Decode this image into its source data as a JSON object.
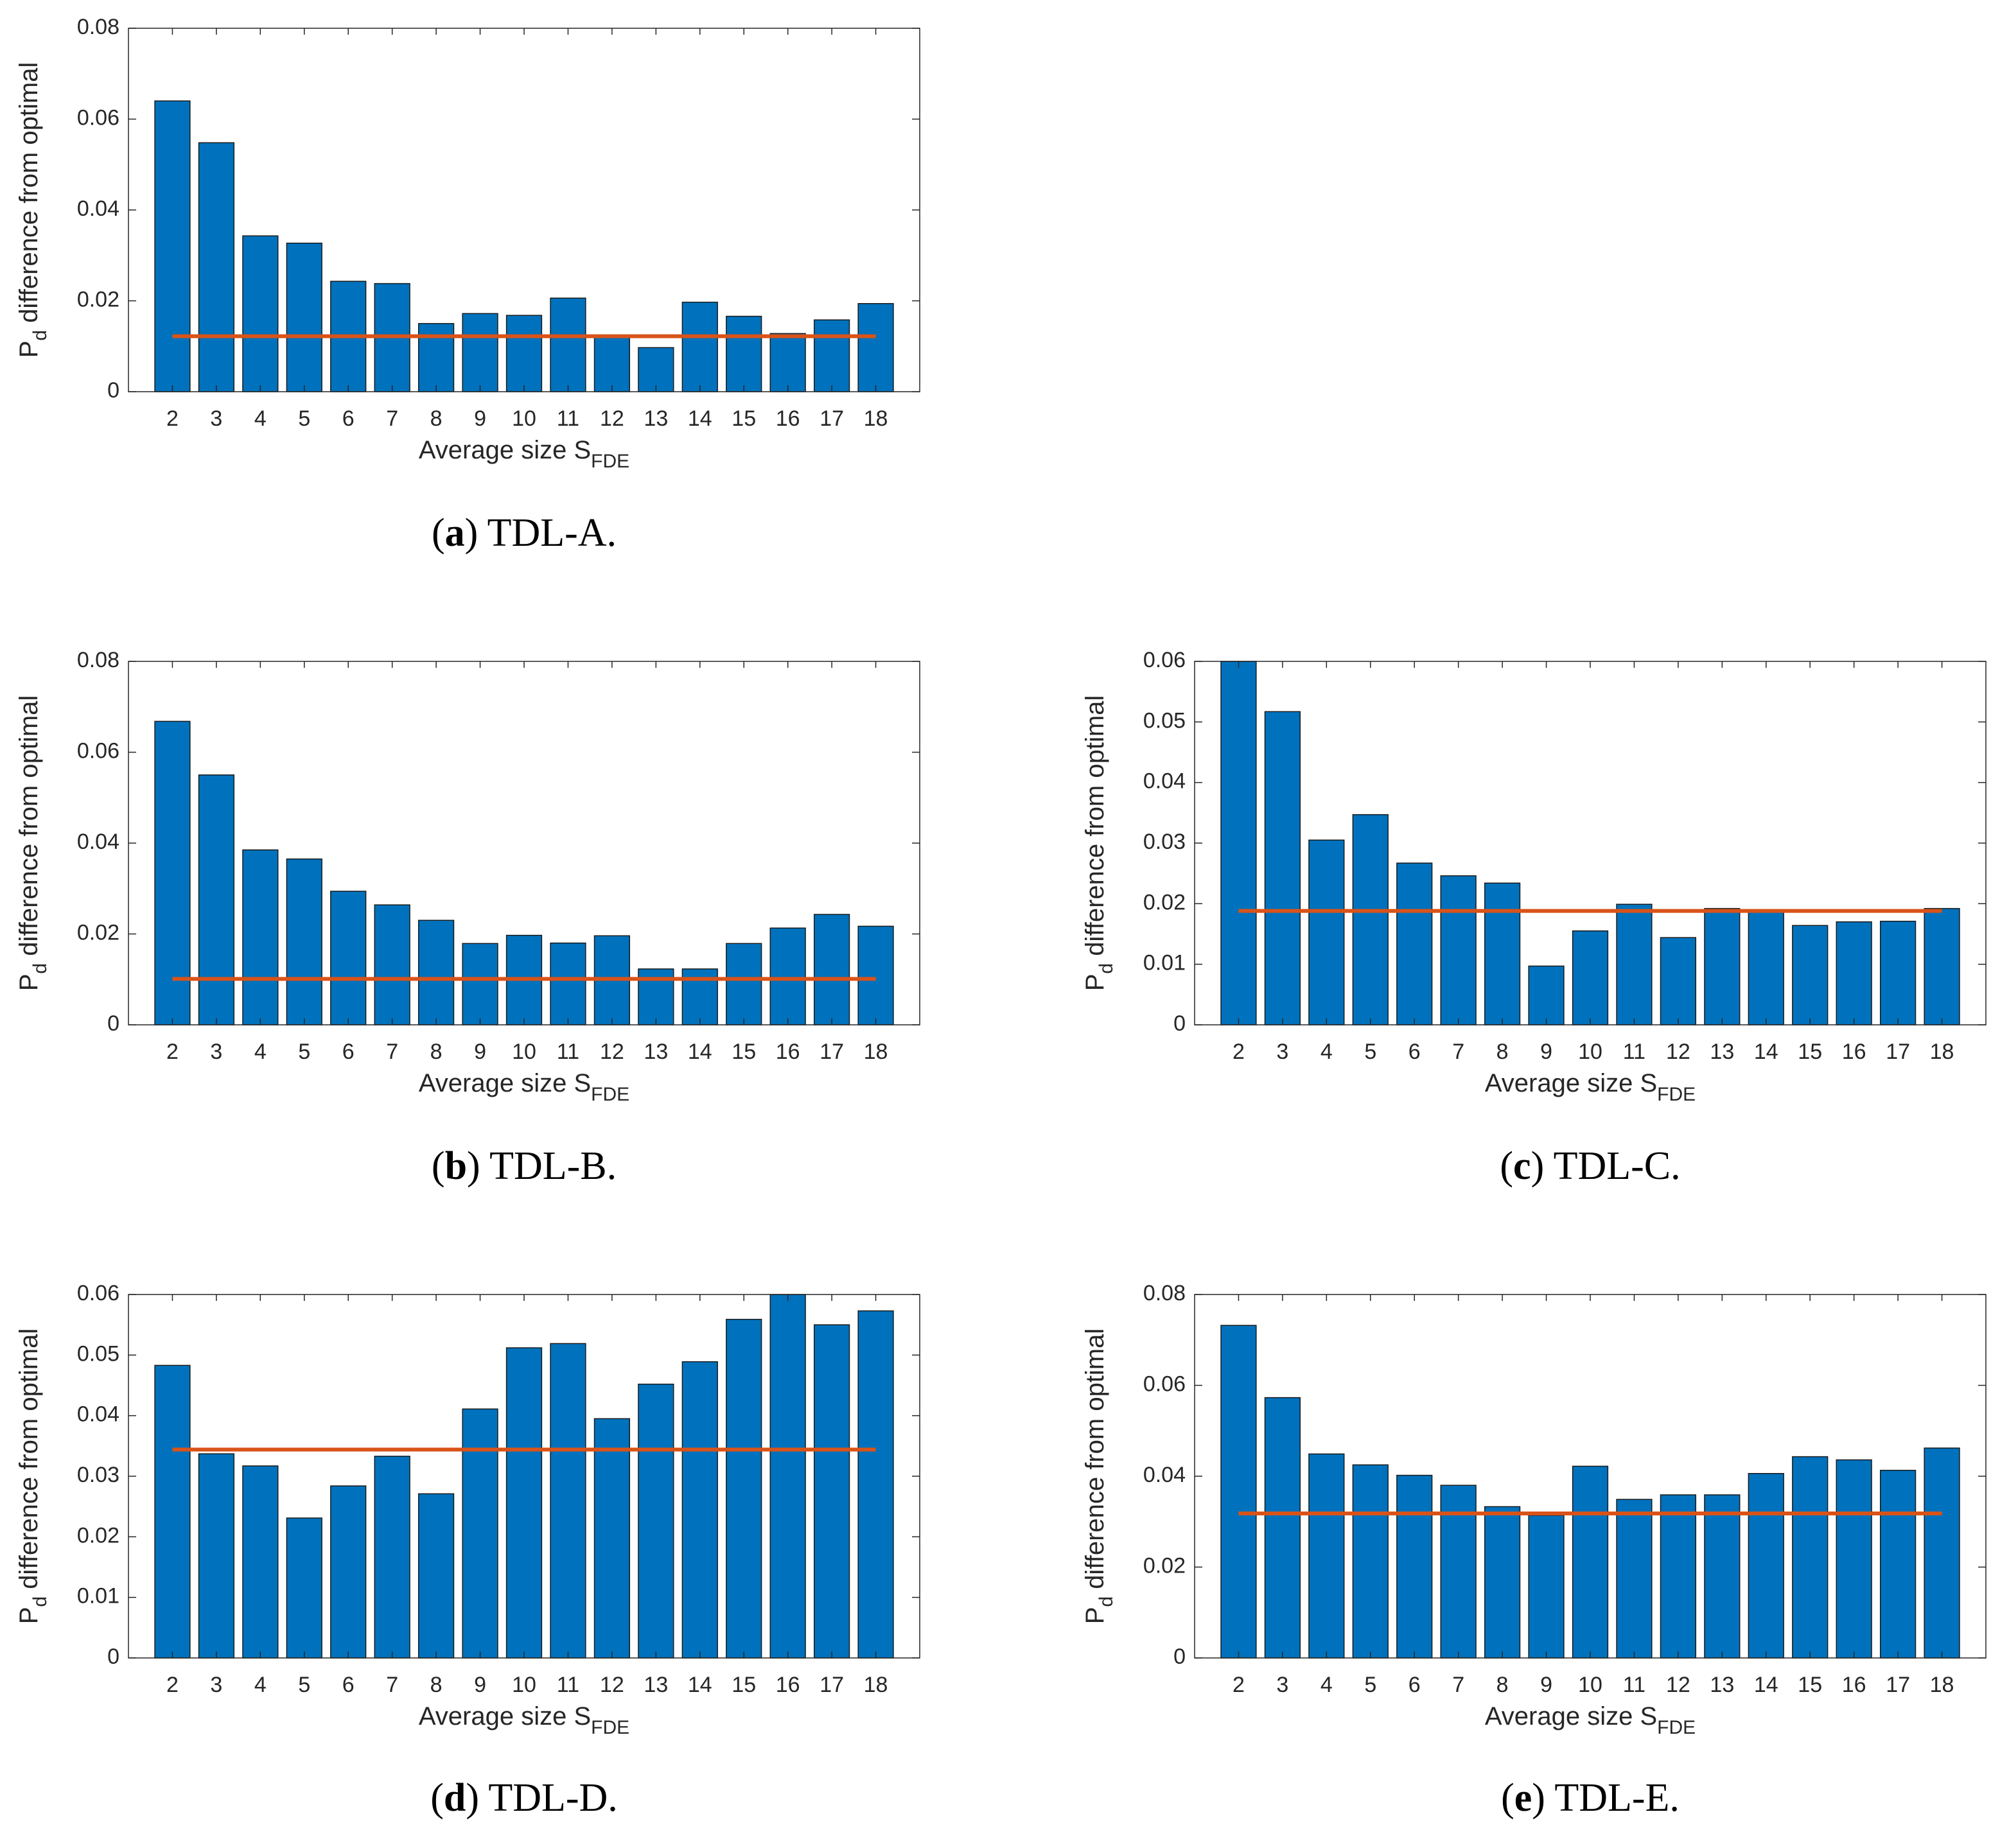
{
  "chart_data": [
    {
      "type": "bar",
      "caption": [
        "(",
        "a",
        ") TDL-A."
      ],
      "xlabel": {
        "main": "Average size S",
        "sub": "FDE"
      },
      "ylabel": {
        "main": "P",
        "sub": "d",
        "rest": " difference from optimal"
      },
      "categories": [
        "2",
        "3",
        "4",
        "5",
        "6",
        "7",
        "8",
        "9",
        "10",
        "11",
        "12",
        "13",
        "14",
        "15",
        "16",
        "17",
        "18"
      ],
      "values": [
        0.064,
        0.0548,
        0.0343,
        0.0327,
        0.0243,
        0.0238,
        0.015,
        0.0172,
        0.0168,
        0.0206,
        0.0123,
        0.0097,
        0.0197,
        0.0166,
        0.0128,
        0.0158,
        0.0194
      ],
      "color": "#0072bd",
      "hline": 0.0122,
      "hline_color": "#d95319",
      "ylim": [
        0,
        0.08
      ],
      "yticks": [
        0,
        0.02,
        0.04,
        0.06,
        0.08
      ]
    },
    {
      "type": "bar",
      "caption": [
        "(",
        "b",
        ") TDL-B."
      ],
      "xlabel": {
        "main": "Average size S",
        "sub": "FDE"
      },
      "ylabel": {
        "main": "P",
        "sub": "d",
        "rest": " difference from optimal"
      },
      "categories": [
        "2",
        "3",
        "4",
        "5",
        "6",
        "7",
        "8",
        "9",
        "10",
        "11",
        "12",
        "13",
        "14",
        "15",
        "16",
        "17",
        "18"
      ],
      "values": [
        0.0668,
        0.055,
        0.0385,
        0.0365,
        0.0294,
        0.0264,
        0.023,
        0.0179,
        0.0197,
        0.018,
        0.0196,
        0.0123,
        0.0123,
        0.0179,
        0.0213,
        0.0243,
        0.0217
      ],
      "color": "#0072bd",
      "hline": 0.0101,
      "hline_color": "#d95319",
      "ylim": [
        0,
        0.08
      ],
      "yticks": [
        0,
        0.02,
        0.04,
        0.06,
        0.08
      ]
    },
    {
      "type": "bar",
      "caption": [
        "(",
        "c",
        ") TDL-C."
      ],
      "xlabel": {
        "main": "Average size S",
        "sub": "FDE"
      },
      "ylabel": {
        "main": "P",
        "sub": "d",
        "rest": " difference from optimal"
      },
      "categories": [
        "2",
        "3",
        "4",
        "5",
        "6",
        "7",
        "8",
        "9",
        "10",
        "11",
        "12",
        "13",
        "14",
        "15",
        "16",
        "17",
        "18"
      ],
      "values": [
        0.06,
        0.0517,
        0.0305,
        0.0347,
        0.0267,
        0.0246,
        0.0234,
        0.0097,
        0.0155,
        0.0199,
        0.0144,
        0.0192,
        0.0189,
        0.0164,
        0.017,
        0.0171,
        0.0192
      ],
      "color": "#0072bd",
      "hline": 0.0188,
      "hline_color": "#d95319",
      "ylim": [
        0,
        0.06
      ],
      "yticks": [
        0,
        0.01,
        0.02,
        0.03,
        0.04,
        0.05,
        0.06
      ]
    },
    {
      "type": "bar",
      "caption": [
        "(",
        "d",
        ") TDL-D."
      ],
      "xlabel": {
        "main": "Average size S",
        "sub": "FDE"
      },
      "ylabel": {
        "main": "P",
        "sub": "d",
        "rest": " difference from optimal"
      },
      "categories": [
        "2",
        "3",
        "4",
        "5",
        "6",
        "7",
        "8",
        "9",
        "10",
        "11",
        "12",
        "13",
        "14",
        "15",
        "16",
        "17",
        "18"
      ],
      "values": [
        0.0483,
        0.0337,
        0.0317,
        0.0231,
        0.0284,
        0.0333,
        0.0271,
        0.0411,
        0.0512,
        0.0519,
        0.0395,
        0.0452,
        0.0489,
        0.0559,
        0.06,
        0.055,
        0.0573
      ],
      "color": "#0072bd",
      "hline": 0.0344,
      "hline_color": "#d95319",
      "ylim": [
        0,
        0.06
      ],
      "yticks": [
        0,
        0.01,
        0.02,
        0.03,
        0.04,
        0.05,
        0.06
      ]
    },
    {
      "type": "bar",
      "caption": [
        "(",
        "e",
        ") TDL-E."
      ],
      "xlabel": {
        "main": "Average size S",
        "sub": "FDE"
      },
      "ylabel": {
        "main": "P",
        "sub": "d",
        "rest": " difference from optimal"
      },
      "categories": [
        "2",
        "3",
        "4",
        "5",
        "6",
        "7",
        "8",
        "9",
        "10",
        "11",
        "12",
        "13",
        "14",
        "15",
        "16",
        "17",
        "18"
      ],
      "values": [
        0.0732,
        0.0573,
        0.0449,
        0.0425,
        0.0402,
        0.038,
        0.0333,
        0.0314,
        0.0422,
        0.0349,
        0.0359,
        0.0359,
        0.0406,
        0.0443,
        0.0436,
        0.0413,
        0.0462
      ],
      "color": "#0072bd",
      "hline": 0.0318,
      "hline_color": "#d95319",
      "ylim": [
        0,
        0.08
      ],
      "yticks": [
        0,
        0.02,
        0.04,
        0.06,
        0.08
      ]
    }
  ]
}
